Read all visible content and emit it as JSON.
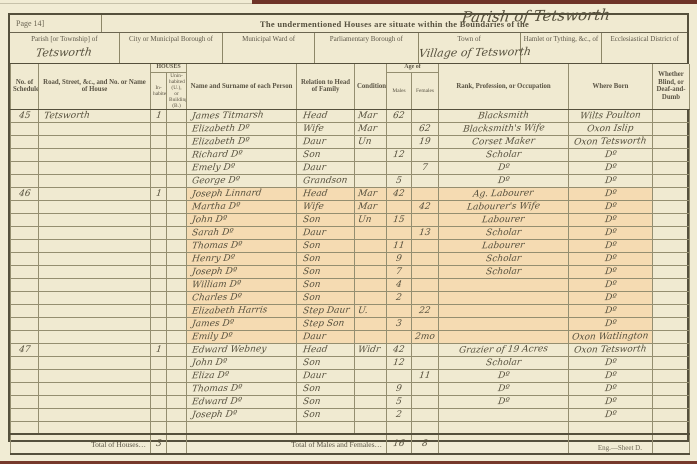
{
  "page": {
    "page_label": "Page 14]",
    "band_title": "The undermentioned Houses are situate within the Boundaries of the",
    "band_title_script": "Parish of Tetsworth",
    "sheet_note": "Eng.—Sheet D."
  },
  "location_header": {
    "columns": [
      {
        "label": "Parish [or Township] of",
        "value": "Tetsworth"
      },
      {
        "label": "City or Municipal Borough of",
        "value": ""
      },
      {
        "label": "Municipal Ward of",
        "value": ""
      },
      {
        "label": "Parliamentary Borough of",
        "value": ""
      },
      {
        "label": "Town of",
        "value": "Village of Tetsworth"
      },
      {
        "label": "Hamlet or Tything, &c., of",
        "value": ""
      },
      {
        "label": "Ecclesiastical District of",
        "value": ""
      }
    ]
  },
  "table": {
    "headers": {
      "schedule": "No. of Schedule",
      "road": "Road, Street, &c., and No. or Name of House",
      "houses_group": "HOUSES",
      "inhabited": "In-habited",
      "uninhabited": "Unin-habited (U.), or Building (B.)",
      "name": "Name and Surname of each Person",
      "relation": "Relation to Head of Family",
      "condition": "Condition",
      "age_group": "Age of",
      "age_m": "Males",
      "age_f": "Females",
      "occupation": "Rank, Profession, or Occupation",
      "born": "Where Born",
      "infirmity": "Whether Blind, or Deaf-and-Dumb"
    },
    "rows": [
      {
        "sched": "45",
        "road": "Tetsworth",
        "inh": "1",
        "name": "James Titmarsh",
        "rel": "Head",
        "cond": "Mar",
        "am": "62",
        "occ": "Blacksmith",
        "born": "Wilts Poulton"
      },
      {
        "name": "Elizabeth Dº",
        "rel": "Wife",
        "cond": "Mar",
        "af": "62",
        "occ": "Blacksmith's Wife",
        "born": "Oxon Islip"
      },
      {
        "name": "Elizabeth Dº",
        "rel": "Daur",
        "cond": "Un",
        "af": "19",
        "occ": "Corset Maker",
        "born": "Oxon Tetsworth"
      },
      {
        "name": "Richard Dº",
        "rel": "Son",
        "am": "12",
        "occ": "Scholar",
        "born": "Dº"
      },
      {
        "name": "Emely Dº",
        "rel": "Daur",
        "af": "7",
        "occ": "Dº",
        "born": "Dº"
      },
      {
        "name": "George Dº",
        "rel": "Grandson",
        "am": "5",
        "occ": "Dº",
        "born": "Dº"
      },
      {
        "hl": true,
        "sched": "46",
        "inh": "1",
        "name": "Joseph Linnard",
        "rel": "Head",
        "cond": "Mar",
        "am": "42",
        "occ": "Ag. Labourer",
        "born": "Dº"
      },
      {
        "hl": true,
        "name": "Martha Dº",
        "rel": "Wife",
        "cond": "Mar",
        "af": "42",
        "occ": "Labourer's Wife",
        "born": "Dº"
      },
      {
        "hl": true,
        "name": "John Dº",
        "rel": "Son",
        "cond": "Un",
        "am": "15",
        "occ": "Labourer",
        "born": "Dº"
      },
      {
        "hl": true,
        "name": "Sarah Dº",
        "rel": "Daur",
        "af": "13",
        "occ": "Scholar",
        "born": "Dº"
      },
      {
        "hl": true,
        "name": "Thomas Dº",
        "rel": "Son",
        "am": "11",
        "occ": "Labourer",
        "born": "Dº"
      },
      {
        "hl": true,
        "name": "Henry Dº",
        "rel": "Son",
        "am": "9",
        "occ": "Scholar",
        "born": "Dº"
      },
      {
        "hl": true,
        "name": "Joseph Dº",
        "rel": "Son",
        "am": "7",
        "occ": "Scholar",
        "born": "Dº"
      },
      {
        "hl": true,
        "name": "William Dº",
        "rel": "Son",
        "am": "4",
        "born": "Dº"
      },
      {
        "hl": true,
        "name": "Charles Dº",
        "rel": "Son",
        "am": "2",
        "born": "Dº"
      },
      {
        "hl": true,
        "name": "Elizabeth Harris",
        "rel": "Step Daur",
        "cond": "U.",
        "af": "22",
        "born": "Dº"
      },
      {
        "hl": true,
        "name": "James Dº",
        "rel": "Step Son",
        "am": "3",
        "born": "Dº"
      },
      {
        "hl": true,
        "name": "Emily Dº",
        "rel": "Daur",
        "af": "2mo",
        "born": "Oxon Watlington"
      },
      {
        "sched": "47",
        "inh": "1",
        "name": "Edward Webney",
        "rel": "Head",
        "cond": "Widr",
        "am": "42",
        "occ": "Grazier of 19 Acres",
        "born": "Oxon Tetsworth"
      },
      {
        "name": "John Dº",
        "rel": "Son",
        "am": "12",
        "occ": "Scholar",
        "born": "Dº"
      },
      {
        "name": "Eliza Dº",
        "rel": "Daur",
        "af": "11",
        "occ": "Dº",
        "born": "Dº"
      },
      {
        "name": "Thomas Dº",
        "rel": "Son",
        "am": "9",
        "occ": "Dº",
        "born": "Dº"
      },
      {
        "name": "Edward Dº",
        "rel": "Son",
        "am": "5",
        "occ": "Dº",
        "born": "Dº"
      },
      {
        "name": "Joseph Dº",
        "rel": "Son",
        "am": "2",
        "born": "Dº"
      },
      {}
    ],
    "totals": {
      "houses_label": "Total of Houses…",
      "houses_value": "3",
      "persons_label": "Total of Males and Females…",
      "males": "16",
      "females": "8"
    }
  }
}
